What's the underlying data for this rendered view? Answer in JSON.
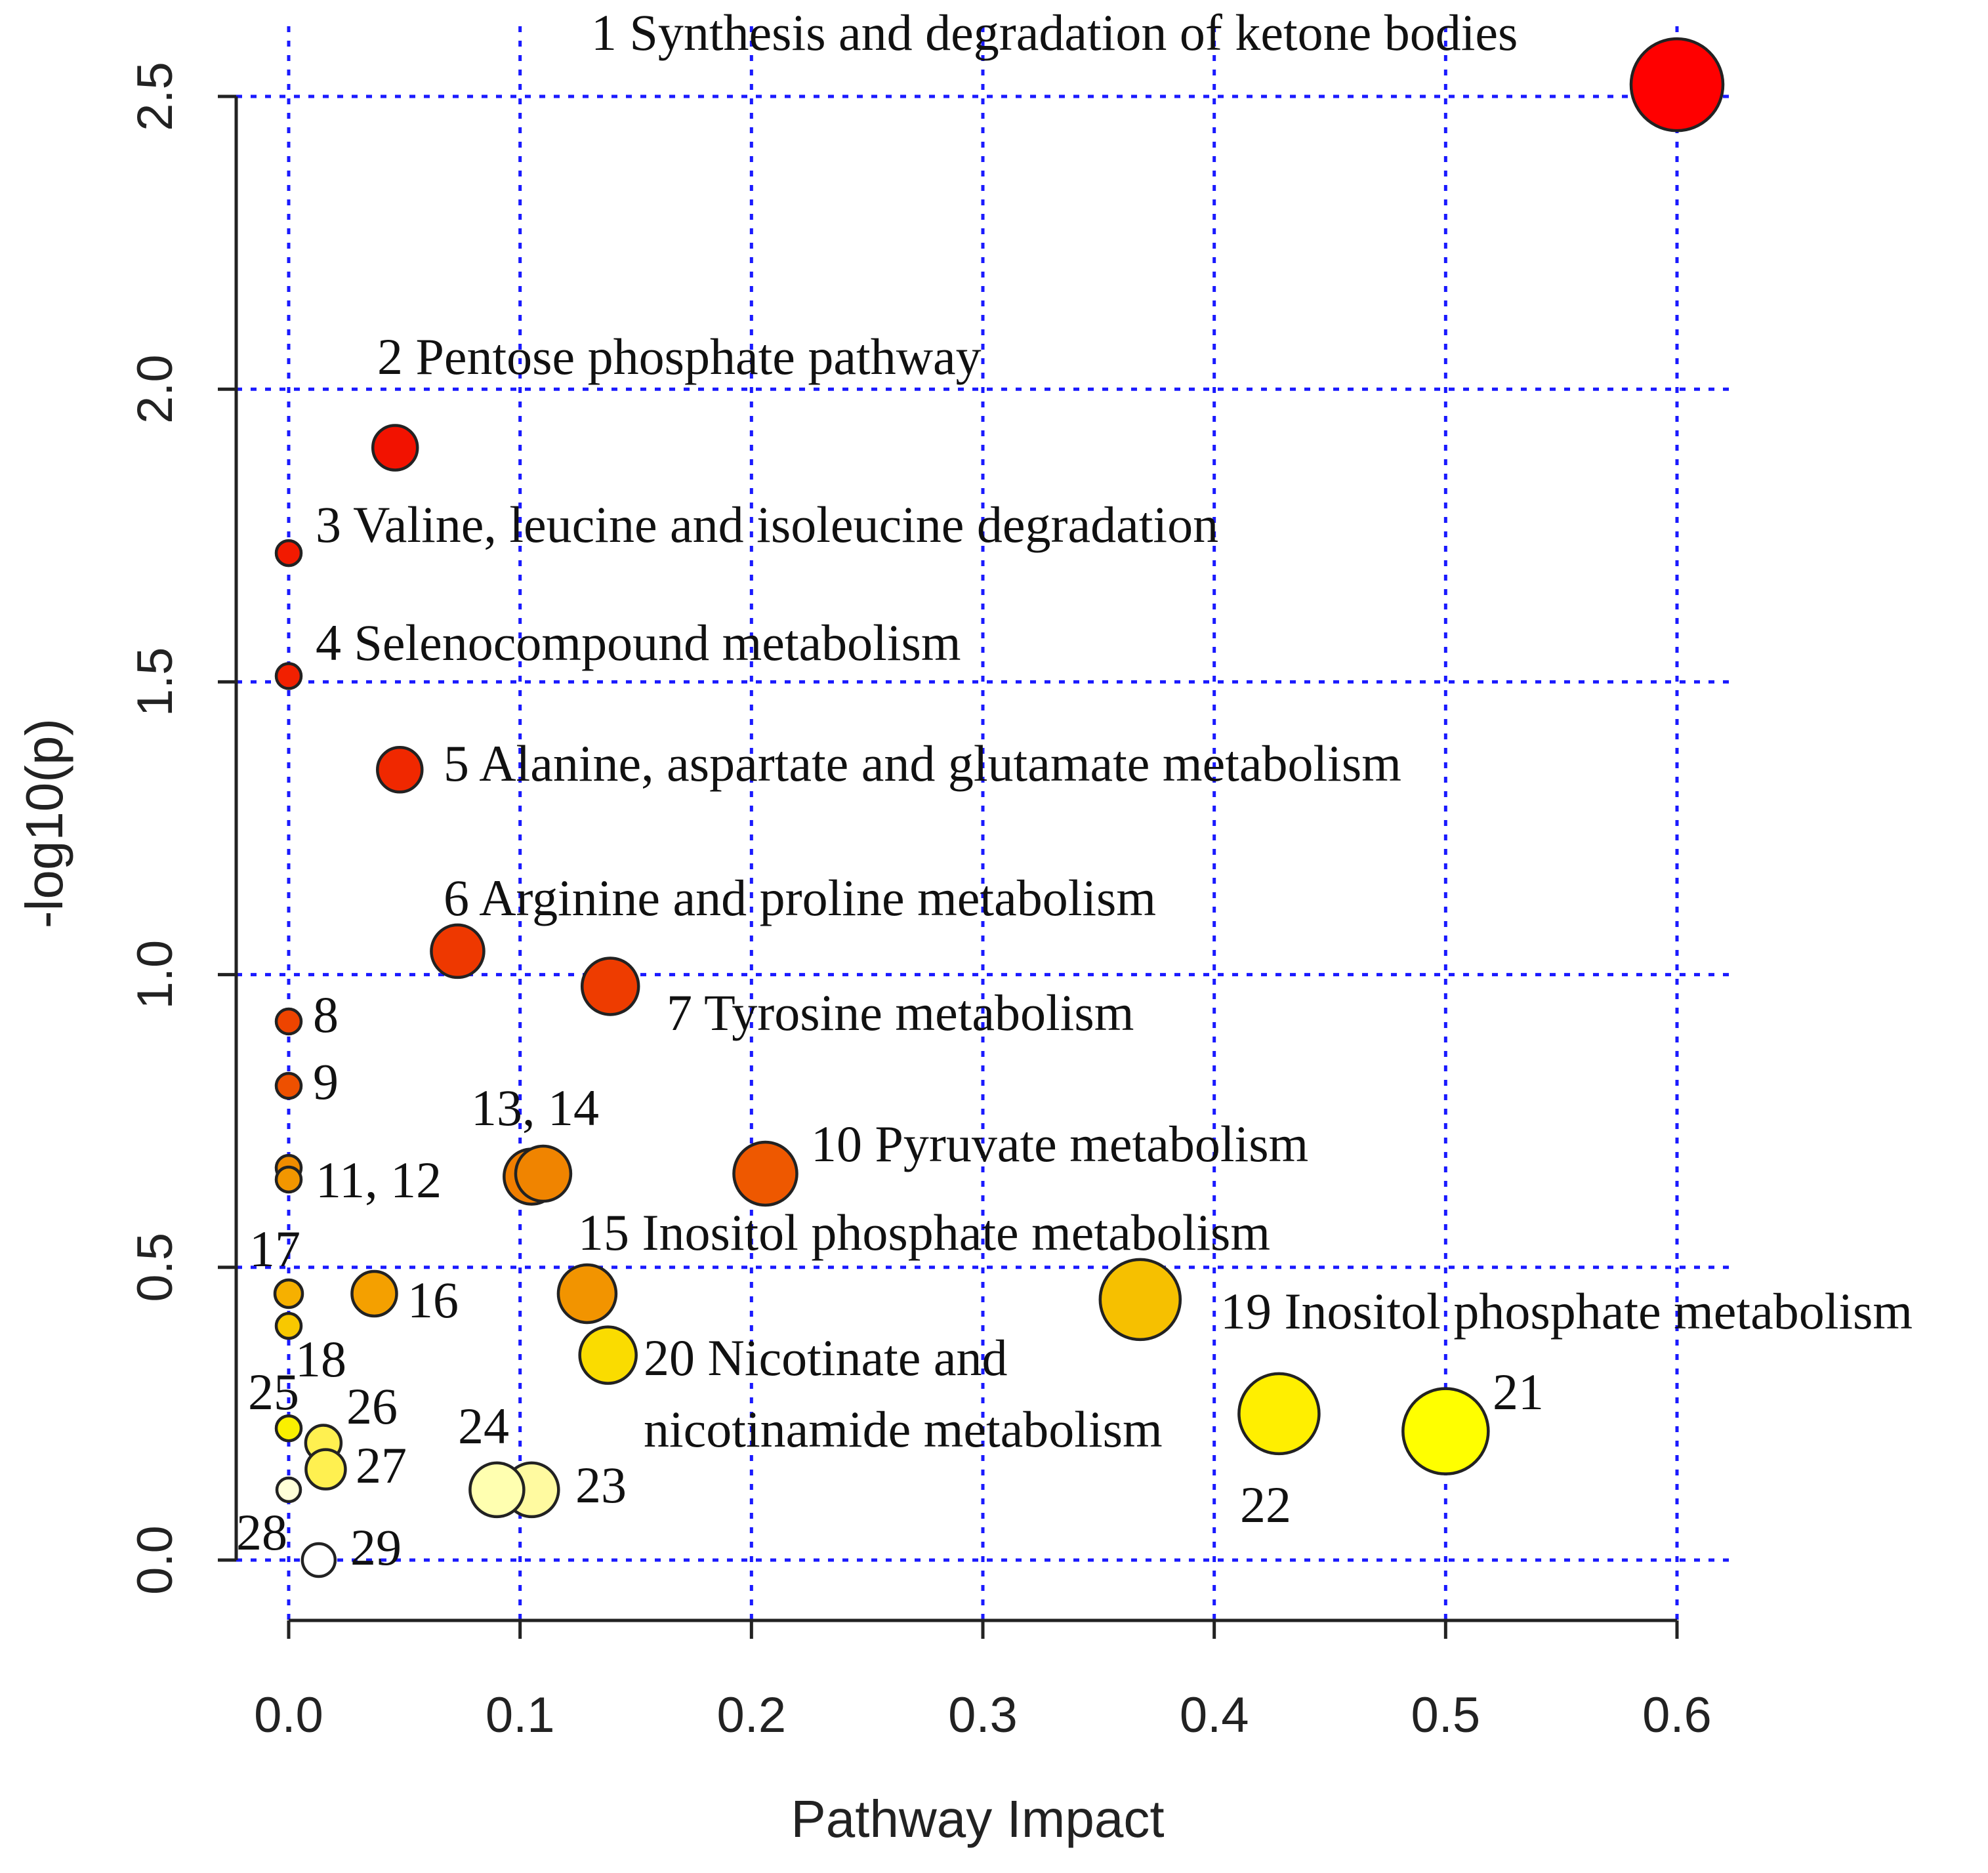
{
  "chart_data": {
    "type": "scatter",
    "title": "",
    "xlabel": "Pathway Impact",
    "ylabel": "-log10(p)",
    "xlim": [
      0.0,
      0.6
    ],
    "ylim": [
      0.0,
      2.5
    ],
    "grid": true,
    "x_ticks": [
      "0.0",
      "0.1",
      "0.2",
      "0.3",
      "0.4",
      "0.5",
      "0.6"
    ],
    "y_ticks": [
      "0.0",
      "0.5",
      "1.0",
      "1.5",
      "2.0",
      "2.5"
    ],
    "points": [
      {
        "id": 1,
        "x": 0.6,
        "y": 2.52,
        "size": 0.0,
        "color": "#ff0000",
        "label": "1 Synthesis and degradation of ketone bodies"
      },
      {
        "id": 2,
        "x": 0.046,
        "y": 1.9,
        "size": 0.0,
        "color": "#f21200",
        "label": "2 Pentose phosphate pathway"
      },
      {
        "id": 3,
        "x": 0.0,
        "y": 1.72,
        "size": 0.0,
        "color": "#f21a00",
        "label": "3 Valine, leucine and isoleucine degradation"
      },
      {
        "id": 4,
        "x": 0.0,
        "y": 1.51,
        "size": 0.0,
        "color": "#f22000",
        "label": "4 Selenocompound metabolism"
      },
      {
        "id": 5,
        "x": 0.048,
        "y": 1.35,
        "size": 0.0,
        "color": "#f02800",
        "label": "5 Alanine, aspartate and glutamate metabolism"
      },
      {
        "id": 6,
        "x": 0.073,
        "y": 1.04,
        "size": 0.0,
        "color": "#ee3800",
        "label": "6 Arginine and proline metabolism"
      },
      {
        "id": 7,
        "x": 0.139,
        "y": 0.98,
        "size": 0.0,
        "color": "#ee3c00",
        "label": "7 Tyrosine metabolism"
      },
      {
        "id": 8,
        "x": 0.0,
        "y": 0.92,
        "size": 0.0,
        "color": "#ee4400",
        "label": "8"
      },
      {
        "id": 9,
        "x": 0.0,
        "y": 0.81,
        "size": 0.0,
        "color": "#ee5000",
        "label": "9"
      },
      {
        "id": 10,
        "x": 0.206,
        "y": 0.66,
        "size": 0.0,
        "color": "#ee5800",
        "label": "10 Pyruvate metabolism"
      },
      {
        "id": 11,
        "x": 0.0,
        "y": 0.67,
        "size": 0.0,
        "color": "#f08c00",
        "label": ""
      },
      {
        "id": 12,
        "x": 0.0,
        "y": 0.65,
        "size": 0.0,
        "color": "#f29600",
        "label": "11, 12"
      },
      {
        "id": 13,
        "x": 0.105,
        "y": 0.655,
        "size": 0.0,
        "color": "#f07e00",
        "label": ""
      },
      {
        "id": 14,
        "x": 0.11,
        "y": 0.66,
        "size": 0.0,
        "color": "#f08400",
        "label": "13, 14"
      },
      {
        "id": 15,
        "x": 0.129,
        "y": 0.455,
        "size": 0.0,
        "color": "#f29400",
        "label": "15 Inositol phosphate metabolism"
      },
      {
        "id": 16,
        "x": 0.037,
        "y": 0.455,
        "size": 0.0,
        "color": "#f4a000",
        "label": "16"
      },
      {
        "id": 17,
        "x": 0.0,
        "y": 0.455,
        "size": 0.0,
        "color": "#f6b000",
        "label": "17"
      },
      {
        "id": 18,
        "x": 0.0,
        "y": 0.4,
        "size": 0.0,
        "color": "#f8c800",
        "label": "18"
      },
      {
        "id": 19,
        "x": 0.368,
        "y": 0.445,
        "size": 0.0,
        "color": "#f6c000",
        "label": "19 Inositol phosphate metabolism"
      },
      {
        "id": 20,
        "x": 0.138,
        "y": 0.35,
        "size": 0.0,
        "color": "#fadc00",
        "label": "20 Nicotinate and nicotinamide metabolism"
      },
      {
        "id": 21,
        "x": 0.5,
        "y": 0.22,
        "size": 0.0,
        "color": "#ffff00",
        "label": "21"
      },
      {
        "id": 22,
        "x": 0.428,
        "y": 0.25,
        "size": 0.0,
        "color": "#ffef00",
        "label": "22"
      },
      {
        "id": 23,
        "x": 0.105,
        "y": 0.12,
        "size": 0.0,
        "color": "#fffaa0",
        "label": "23"
      },
      {
        "id": 24,
        "x": 0.09,
        "y": 0.12,
        "size": 0.0,
        "color": "#ffffb0",
        "label": "24"
      },
      {
        "id": 25,
        "x": 0.0,
        "y": 0.225,
        "size": 0.0,
        "color": "#faf000",
        "label": "25"
      },
      {
        "id": 26,
        "x": 0.015,
        "y": 0.2,
        "size": 0.0,
        "color": "#fff050",
        "label": "26"
      },
      {
        "id": 27,
        "x": 0.016,
        "y": 0.155,
        "size": 0.0,
        "color": "#fff050",
        "label": "27"
      },
      {
        "id": 28,
        "x": 0.0,
        "y": 0.12,
        "size": 0.0,
        "color": "#ffffd8",
        "label": "28"
      },
      {
        "id": 29,
        "x": 0.013,
        "y": 0.0,
        "size": 0.0,
        "color": "#ffffff",
        "label": "29"
      }
    ]
  }
}
